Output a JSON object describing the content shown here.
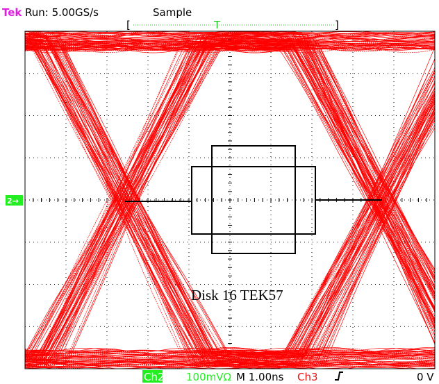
{
  "header": {
    "brand": "Tek",
    "acquisition": "Run: 5.00GS/s",
    "mode": "Sample"
  },
  "trigger_position": {
    "left": "[",
    "marker": "T",
    "right": "]"
  },
  "channel_marker": "2→",
  "annotation": "Disk 16 TEK57",
  "status_bar": {
    "channel": "Ch2",
    "scale": "100mVΩ",
    "timebase": "M 1.00ns",
    "trigger_source": "Ch3",
    "trigger_level": "0 V"
  }
}
